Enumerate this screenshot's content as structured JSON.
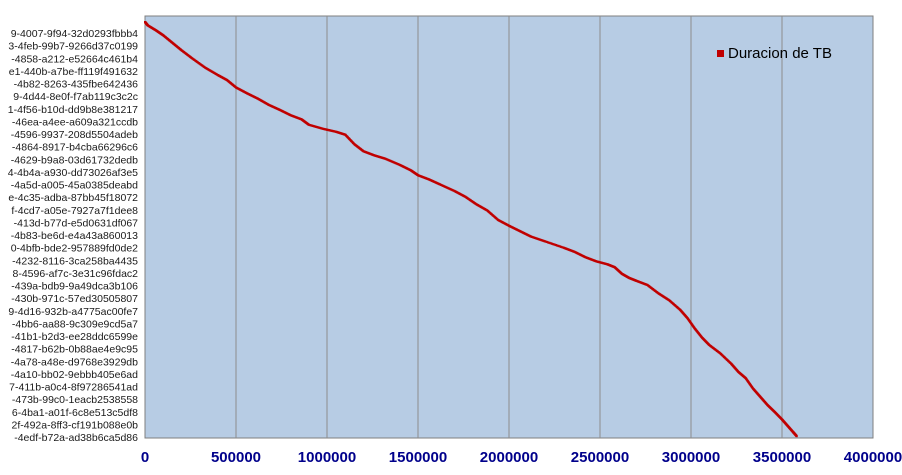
{
  "chart_data": {
    "type": "scatter",
    "title": "",
    "xlabel": "",
    "ylabel": "",
    "xlim": [
      0,
      4000000
    ],
    "x_ticks": [
      "0",
      "500000",
      "1000000",
      "1500000",
      "2000000",
      "2500000",
      "3000000",
      "3500000",
      "4000000"
    ],
    "grid": "vertical",
    "legend_position": "top-right",
    "background_color": "#b7cce4",
    "marker_color": "#c00000",
    "y_tick_labels": [
      "9-4007-9f94-32d0293fbbb4",
      "3-4feb-99b7-9266d37c0199",
      "-4858-a212-e52664c461b4",
      "e1-440b-a7be-ff119f491632",
      "-4b82-8263-435fbe642436",
      "9-4d44-8e0f-f7ab119c3c2c",
      "1-4f56-b10d-dd9b8e381217",
      "-46ea-a4ee-a609a321ccdb",
      "-4596-9937-208d5504adeb",
      "-4864-8917-b4cba66296c6",
      "-4629-b9a8-03d61732dedb",
      "4-4b4a-a930-dd73026af3e5",
      "-4a5d-a005-45a0385deabd",
      "e-4c35-adba-87bb45f18072",
      "f-4cd7-a05e-7927a7f1dee8",
      "-413d-b77d-e5d0631df067",
      "-4b83-be6d-e4a43a860013",
      "0-4bfb-bde2-957889fd0de2",
      "-4232-8116-3ca258ba4435",
      "8-4596-af7c-3e31c96fdac2",
      "-439a-bdb9-9a49dca3b106",
      "-430b-971c-57ed30505807",
      "9-4d16-932b-a4775ac00fe7",
      "-4bb6-aa88-9c309e9cd5a7",
      "-41b1-b2d3-ee28ddc6599e",
      "-4817-b62b-0b88ae4e9c95",
      "-4a78-a48e-d9768e3929db",
      "-4a10-bb02-9ebbb405e6ad",
      "7-411b-a0c4-8f97286541ad",
      "-473b-99c0-1eacb2538558",
      "6-4ba1-a01f-6c8e513c5df8",
      "2f-492a-8ff3-cf191b088e0b",
      "-4edf-b72a-ad38b6ca5d86"
    ],
    "series": [
      {
        "name": "Duracion de TB",
        "points": [
          [
            0,
            0.0
          ],
          [
            15000,
            0.008
          ],
          [
            60000,
            0.02
          ],
          [
            100000,
            0.032
          ],
          [
            150000,
            0.05
          ],
          [
            200000,
            0.068
          ],
          [
            260000,
            0.088
          ],
          [
            330000,
            0.11
          ],
          [
            400000,
            0.128
          ],
          [
            450000,
            0.14
          ],
          [
            500000,
            0.158
          ],
          [
            560000,
            0.172
          ],
          [
            620000,
            0.185
          ],
          [
            680000,
            0.2
          ],
          [
            740000,
            0.212
          ],
          [
            800000,
            0.225
          ],
          [
            860000,
            0.235
          ],
          [
            900000,
            0.248
          ],
          [
            980000,
            0.258
          ],
          [
            1050000,
            0.265
          ],
          [
            1100000,
            0.272
          ],
          [
            1150000,
            0.295
          ],
          [
            1200000,
            0.312
          ],
          [
            1260000,
            0.322
          ],
          [
            1320000,
            0.33
          ],
          [
            1400000,
            0.345
          ],
          [
            1460000,
            0.358
          ],
          [
            1500000,
            0.37
          ],
          [
            1560000,
            0.38
          ],
          [
            1620000,
            0.392
          ],
          [
            1700000,
            0.408
          ],
          [
            1760000,
            0.422
          ],
          [
            1820000,
            0.44
          ],
          [
            1880000,
            0.455
          ],
          [
            1940000,
            0.478
          ],
          [
            2000000,
            0.492
          ],
          [
            2060000,
            0.505
          ],
          [
            2120000,
            0.518
          ],
          [
            2200000,
            0.53
          ],
          [
            2300000,
            0.545
          ],
          [
            2360000,
            0.555
          ],
          [
            2420000,
            0.568
          ],
          [
            2480000,
            0.578
          ],
          [
            2540000,
            0.585
          ],
          [
            2580000,
            0.592
          ],
          [
            2620000,
            0.608
          ],
          [
            2660000,
            0.618
          ],
          [
            2700000,
            0.625
          ],
          [
            2760000,
            0.635
          ],
          [
            2820000,
            0.655
          ],
          [
            2880000,
            0.672
          ],
          [
            2940000,
            0.695
          ],
          [
            2980000,
            0.715
          ],
          [
            3020000,
            0.74
          ],
          [
            3060000,
            0.762
          ],
          [
            3100000,
            0.78
          ],
          [
            3160000,
            0.8
          ],
          [
            3220000,
            0.825
          ],
          [
            3260000,
            0.845
          ],
          [
            3300000,
            0.86
          ],
          [
            3340000,
            0.885
          ],
          [
            3380000,
            0.905
          ],
          [
            3420000,
            0.925
          ],
          [
            3460000,
            0.942
          ],
          [
            3500000,
            0.96
          ],
          [
            3530000,
            0.975
          ],
          [
            3560000,
            0.99
          ],
          [
            3580000,
            1.0
          ]
        ]
      }
    ]
  }
}
